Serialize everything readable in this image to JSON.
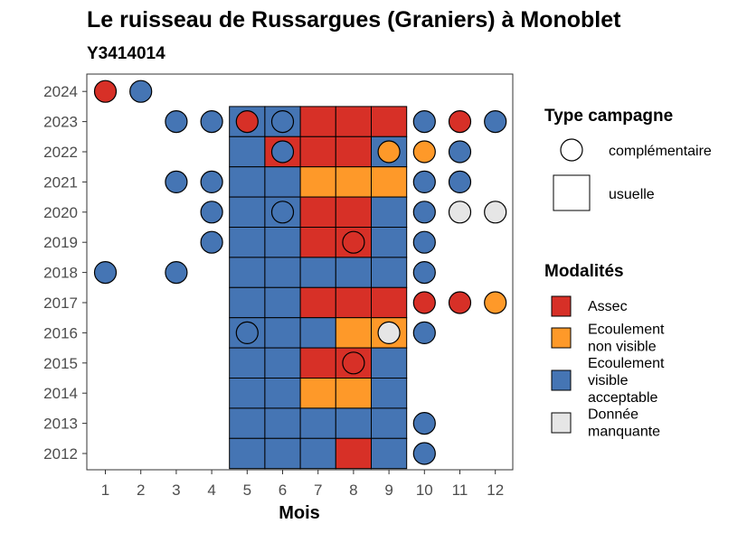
{
  "chart_data": {
    "type": "heatmap",
    "title": "Le ruisseau de Russargues (Graniers) à Monoblet",
    "subtitle": "Y3414014",
    "xlabel": "Mois",
    "ylabel": "",
    "x": [
      1,
      2,
      3,
      4,
      5,
      6,
      7,
      8,
      9,
      10,
      11,
      12
    ],
    "y": [
      2012,
      2013,
      2014,
      2015,
      2016,
      2017,
      2018,
      2019,
      2020,
      2021,
      2022,
      2023,
      2024
    ],
    "colors": {
      "Assec": "#d73027",
      "Ecoulement non visible": "#fe9929",
      "Ecoulement visible acceptable": "#4575b4",
      "Donnée manquante": "#e6e6e6"
    },
    "usuelle": [
      {
        "year": 2023,
        "month": 5,
        "modalite": "Ecoulement visible acceptable"
      },
      {
        "year": 2023,
        "month": 6,
        "modalite": "Ecoulement visible acceptable"
      },
      {
        "year": 2023,
        "month": 7,
        "modalite": "Assec"
      },
      {
        "year": 2023,
        "month": 8,
        "modalite": "Assec"
      },
      {
        "year": 2023,
        "month": 9,
        "modalite": "Assec"
      },
      {
        "year": 2022,
        "month": 5,
        "modalite": "Ecoulement visible acceptable"
      },
      {
        "year": 2022,
        "month": 6,
        "modalite": "Assec"
      },
      {
        "year": 2022,
        "month": 7,
        "modalite": "Assec"
      },
      {
        "year": 2022,
        "month": 8,
        "modalite": "Assec"
      },
      {
        "year": 2022,
        "month": 9,
        "modalite": "Ecoulement visible acceptable"
      },
      {
        "year": 2021,
        "month": 5,
        "modalite": "Ecoulement visible acceptable"
      },
      {
        "year": 2021,
        "month": 6,
        "modalite": "Ecoulement visible acceptable"
      },
      {
        "year": 2021,
        "month": 7,
        "modalite": "Ecoulement non visible"
      },
      {
        "year": 2021,
        "month": 8,
        "modalite": "Ecoulement non visible"
      },
      {
        "year": 2021,
        "month": 9,
        "modalite": "Ecoulement non visible"
      },
      {
        "year": 2020,
        "month": 5,
        "modalite": "Ecoulement visible acceptable"
      },
      {
        "year": 2020,
        "month": 6,
        "modalite": "Ecoulement visible acceptable"
      },
      {
        "year": 2020,
        "month": 7,
        "modalite": "Assec"
      },
      {
        "year": 2020,
        "month": 8,
        "modalite": "Assec"
      },
      {
        "year": 2020,
        "month": 9,
        "modalite": "Ecoulement visible acceptable"
      },
      {
        "year": 2019,
        "month": 5,
        "modalite": "Ecoulement visible acceptable"
      },
      {
        "year": 2019,
        "month": 6,
        "modalite": "Ecoulement visible acceptable"
      },
      {
        "year": 2019,
        "month": 7,
        "modalite": "Assec"
      },
      {
        "year": 2019,
        "month": 8,
        "modalite": "Assec"
      },
      {
        "year": 2019,
        "month": 9,
        "modalite": "Ecoulement visible acceptable"
      },
      {
        "year": 2018,
        "month": 5,
        "modalite": "Ecoulement visible acceptable"
      },
      {
        "year": 2018,
        "month": 6,
        "modalite": "Ecoulement visible acceptable"
      },
      {
        "year": 2018,
        "month": 7,
        "modalite": "Ecoulement visible acceptable"
      },
      {
        "year": 2018,
        "month": 8,
        "modalite": "Ecoulement visible acceptable"
      },
      {
        "year": 2018,
        "month": 9,
        "modalite": "Ecoulement visible acceptable"
      },
      {
        "year": 2017,
        "month": 5,
        "modalite": "Ecoulement visible acceptable"
      },
      {
        "year": 2017,
        "month": 6,
        "modalite": "Ecoulement visible acceptable"
      },
      {
        "year": 2017,
        "month": 7,
        "modalite": "Assec"
      },
      {
        "year": 2017,
        "month": 8,
        "modalite": "Assec"
      },
      {
        "year": 2017,
        "month": 9,
        "modalite": "Assec"
      },
      {
        "year": 2016,
        "month": 5,
        "modalite": "Ecoulement visible acceptable"
      },
      {
        "year": 2016,
        "month": 6,
        "modalite": "Ecoulement visible acceptable"
      },
      {
        "year": 2016,
        "month": 7,
        "modalite": "Ecoulement visible acceptable"
      },
      {
        "year": 2016,
        "month": 8,
        "modalite": "Ecoulement non visible"
      },
      {
        "year": 2016,
        "month": 9,
        "modalite": "Ecoulement non visible"
      },
      {
        "year": 2015,
        "month": 5,
        "modalite": "Ecoulement visible acceptable"
      },
      {
        "year": 2015,
        "month": 6,
        "modalite": "Ecoulement visible acceptable"
      },
      {
        "year": 2015,
        "month": 7,
        "modalite": "Assec"
      },
      {
        "year": 2015,
        "month": 8,
        "modalite": "Assec"
      },
      {
        "year": 2015,
        "month": 9,
        "modalite": "Ecoulement visible acceptable"
      },
      {
        "year": 2014,
        "month": 5,
        "modalite": "Ecoulement visible acceptable"
      },
      {
        "year": 2014,
        "month": 6,
        "modalite": "Ecoulement visible acceptable"
      },
      {
        "year": 2014,
        "month": 7,
        "modalite": "Ecoulement non visible"
      },
      {
        "year": 2014,
        "month": 8,
        "modalite": "Ecoulement non visible"
      },
      {
        "year": 2014,
        "month": 9,
        "modalite": "Ecoulement visible acceptable"
      },
      {
        "year": 2013,
        "month": 5,
        "modalite": "Ecoulement visible acceptable"
      },
      {
        "year": 2013,
        "month": 6,
        "modalite": "Ecoulement visible acceptable"
      },
      {
        "year": 2013,
        "month": 7,
        "modalite": "Ecoulement visible acceptable"
      },
      {
        "year": 2013,
        "month": 8,
        "modalite": "Ecoulement visible acceptable"
      },
      {
        "year": 2013,
        "month": 9,
        "modalite": "Ecoulement visible acceptable"
      },
      {
        "year": 2012,
        "month": 5,
        "modalite": "Ecoulement visible acceptable"
      },
      {
        "year": 2012,
        "month": 6,
        "modalite": "Ecoulement visible acceptable"
      },
      {
        "year": 2012,
        "month": 7,
        "modalite": "Ecoulement visible acceptable"
      },
      {
        "year": 2012,
        "month": 8,
        "modalite": "Assec"
      },
      {
        "year": 2012,
        "month": 9,
        "modalite": "Ecoulement visible acceptable"
      }
    ],
    "complementaire": [
      {
        "year": 2024,
        "month": 1,
        "modalite": "Assec"
      },
      {
        "year": 2024,
        "month": 2,
        "modalite": "Ecoulement visible acceptable"
      },
      {
        "year": 2023,
        "month": 3,
        "modalite": "Ecoulement visible acceptable"
      },
      {
        "year": 2023,
        "month": 4,
        "modalite": "Ecoulement visible acceptable"
      },
      {
        "year": 2023,
        "month": 5,
        "modalite": "Assec"
      },
      {
        "year": 2023,
        "month": 6,
        "modalite": "Ecoulement visible acceptable"
      },
      {
        "year": 2023,
        "month": 10,
        "modalite": "Ecoulement visible acceptable"
      },
      {
        "year": 2023,
        "month": 11,
        "modalite": "Assec"
      },
      {
        "year": 2023,
        "month": 12,
        "modalite": "Ecoulement visible acceptable"
      },
      {
        "year": 2022,
        "month": 6,
        "modalite": "Ecoulement visible acceptable"
      },
      {
        "year": 2022,
        "month": 9,
        "modalite": "Ecoulement non visible"
      },
      {
        "year": 2022,
        "month": 10,
        "modalite": "Ecoulement non visible"
      },
      {
        "year": 2022,
        "month": 11,
        "modalite": "Ecoulement visible acceptable"
      },
      {
        "year": 2021,
        "month": 3,
        "modalite": "Ecoulement visible acceptable"
      },
      {
        "year": 2021,
        "month": 4,
        "modalite": "Ecoulement visible acceptable"
      },
      {
        "year": 2021,
        "month": 10,
        "modalite": "Ecoulement visible acceptable"
      },
      {
        "year": 2021,
        "month": 11,
        "modalite": "Ecoulement visible acceptable"
      },
      {
        "year": 2020,
        "month": 4,
        "modalite": "Ecoulement visible acceptable"
      },
      {
        "year": 2020,
        "month": 6,
        "modalite": "Ecoulement visible acceptable"
      },
      {
        "year": 2020,
        "month": 10,
        "modalite": "Ecoulement visible acceptable"
      },
      {
        "year": 2020,
        "month": 11,
        "modalite": "Donnée manquante"
      },
      {
        "year": 2020,
        "month": 12,
        "modalite": "Donnée manquante"
      },
      {
        "year": 2019,
        "month": 4,
        "modalite": "Ecoulement visible acceptable"
      },
      {
        "year": 2019,
        "month": 8,
        "modalite": "Assec"
      },
      {
        "year": 2019,
        "month": 10,
        "modalite": "Ecoulement visible acceptable"
      },
      {
        "year": 2018,
        "month": 1,
        "modalite": "Ecoulement visible acceptable"
      },
      {
        "year": 2018,
        "month": 3,
        "modalite": "Ecoulement visible acceptable"
      },
      {
        "year": 2018,
        "month": 10,
        "modalite": "Ecoulement visible acceptable"
      },
      {
        "year": 2017,
        "month": 10,
        "modalite": "Assec"
      },
      {
        "year": 2017,
        "month": 11,
        "modalite": "Assec"
      },
      {
        "year": 2017,
        "month": 12,
        "modalite": "Ecoulement non visible"
      },
      {
        "year": 2016,
        "month": 5,
        "modalite": "Ecoulement visible acceptable"
      },
      {
        "year": 2016,
        "month": 9,
        "modalite": "Donnée manquante"
      },
      {
        "year": 2016,
        "month": 10,
        "modalite": "Ecoulement visible acceptable"
      },
      {
        "year": 2015,
        "month": 8,
        "modalite": "Assec"
      },
      {
        "year": 2013,
        "month": 10,
        "modalite": "Ecoulement visible acceptable"
      },
      {
        "year": 2012,
        "month": 10,
        "modalite": "Ecoulement visible acceptable"
      }
    ],
    "legend": {
      "type_campagne": {
        "title": "Type campagne",
        "entries": [
          "complémentaire",
          "usuelle"
        ]
      },
      "modalites": {
        "title": "Modalités",
        "entries": [
          {
            "label": [
              "Assec"
            ],
            "key": "Assec"
          },
          {
            "label": [
              "Ecoulement",
              "non visible"
            ],
            "key": "Ecoulement non visible"
          },
          {
            "label": [
              "Ecoulement",
              "visible",
              "acceptable"
            ],
            "key": "Ecoulement visible acceptable"
          },
          {
            "label": [
              "Donnée",
              "manquante"
            ],
            "key": "Donnée manquante"
          }
        ]
      },
      "placement": "right"
    }
  }
}
